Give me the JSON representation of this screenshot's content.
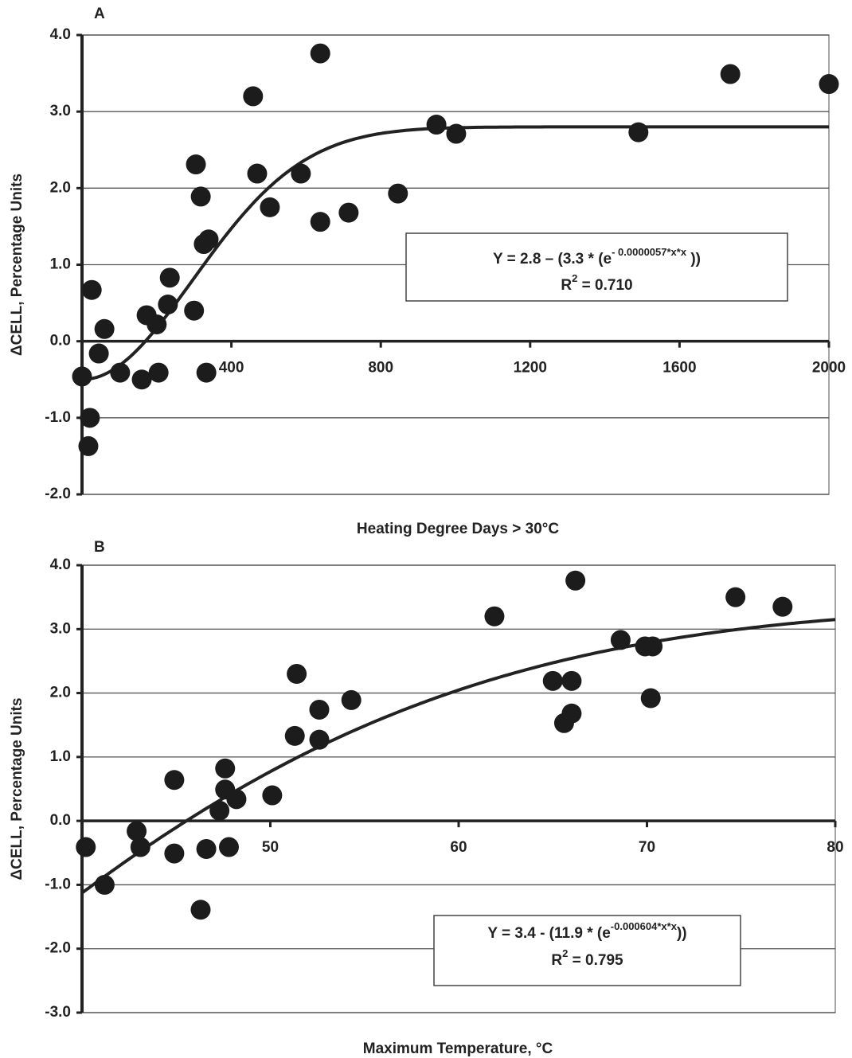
{
  "chart_data": [
    {
      "type": "scatter",
      "title": "A",
      "x_label": "Heating Degree Days > 30°C",
      "y_label": "ΔCELL, Percentage Units",
      "xlim": [
        0,
        2000
      ],
      "ylim": [
        -2,
        4
      ],
      "xticks": [
        400,
        800,
        1200,
        1600,
        2000
      ],
      "yticks": [
        {
          "value": 4,
          "label": "4.0"
        },
        {
          "value": 3,
          "label": "3.0"
        },
        {
          "value": 2,
          "label": "2.0"
        },
        {
          "value": 1,
          "label": "1.0"
        },
        {
          "value": 0,
          "label": "0.0"
        },
        {
          "value": -1,
          "label": "-1.0"
        },
        {
          "value": -2,
          "label": "-2.0"
        }
      ],
      "color": "#1c1c1c",
      "grid": true,
      "x": [
        0,
        26,
        21,
        17,
        45,
        60,
        102,
        160,
        173,
        200,
        205,
        230,
        235,
        300,
        305,
        318,
        326,
        339,
        333,
        458,
        469,
        503,
        586,
        638,
        638,
        714,
        846,
        949,
        1002,
        1490,
        1736,
        2000
      ],
      "values": [
        -0.46,
        0.67,
        -1.0,
        -1.37,
        -0.16,
        0.16,
        -0.41,
        -0.5,
        0.34,
        0.22,
        -0.41,
        0.48,
        0.83,
        0.4,
        2.31,
        1.89,
        1.27,
        1.33,
        -0.41,
        3.2,
        2.19,
        1.75,
        2.19,
        3.76,
        1.56,
        1.68,
        1.93,
        2.83,
        2.71,
        2.73,
        3.49,
        3.36
      ],
      "fit": {
        "a": 2.8,
        "b": 3.3,
        "k": 5.7e-06
      },
      "equation": {
        "text": "Y = 2.8 – (3.3 * (e",
        "exponent": "- 0.0000057*x*x",
        "close": " ))"
      },
      "r_squared": {
        "symbol": "R",
        "power": "2",
        "text": " = 0.710"
      }
    },
    {
      "type": "scatter",
      "title": "B",
      "x_label": "Maximum Temperature, °C",
      "y_label": "ΔCELL, Percentage Units",
      "xlim": [
        40,
        80
      ],
      "ylim": [
        -3,
        4
      ],
      "xticks": [
        50,
        60,
        70,
        80
      ],
      "yticks": [
        {
          "value": 4,
          "label": "4.0"
        },
        {
          "value": 3,
          "label": "3.0"
        },
        {
          "value": 2,
          "label": "2.0"
        },
        {
          "value": 1,
          "label": "1.0"
        },
        {
          "value": 0,
          "label": "0.0"
        },
        {
          "value": -1,
          "label": "-1.0"
        },
        {
          "value": -2,
          "label": "-2.0"
        },
        {
          "value": -3,
          "label": "-3.0"
        }
      ],
      "color": "#1c1c1c",
      "grid": true,
      "x": [
        40.2,
        41.2,
        42.9,
        43.1,
        44.9,
        44.9,
        46.3,
        46.6,
        47.3,
        47.6,
        47.6,
        47.8,
        48.2,
        50.1,
        51.3,
        51.4,
        52.6,
        52.6,
        54.3,
        61.9,
        65.0,
        65.6,
        66.0,
        66.0,
        66.2,
        68.6,
        69.9,
        70.3,
        70.2,
        74.7,
        77.2
      ],
      "values": [
        -0.41,
        -1.0,
        -0.16,
        -0.41,
        0.64,
        -0.51,
        -1.39,
        -0.44,
        0.16,
        0.82,
        0.49,
        -0.41,
        0.34,
        0.4,
        1.33,
        2.3,
        1.74,
        1.27,
        1.89,
        3.2,
        2.19,
        1.53,
        2.19,
        1.68,
        3.76,
        2.83,
        2.73,
        2.73,
        1.92,
        3.5,
        3.35
      ],
      "fit": {
        "a": 3.4,
        "b": 11.9,
        "k": 0.000604
      },
      "equation": {
        "text": "Y = 3.4 - (11.9 * (e",
        "exponent": "-0.000604*x*x",
        "close": "))"
      },
      "r_squared": {
        "symbol": "R",
        "power": "2",
        "text": " = 0.795"
      }
    }
  ]
}
